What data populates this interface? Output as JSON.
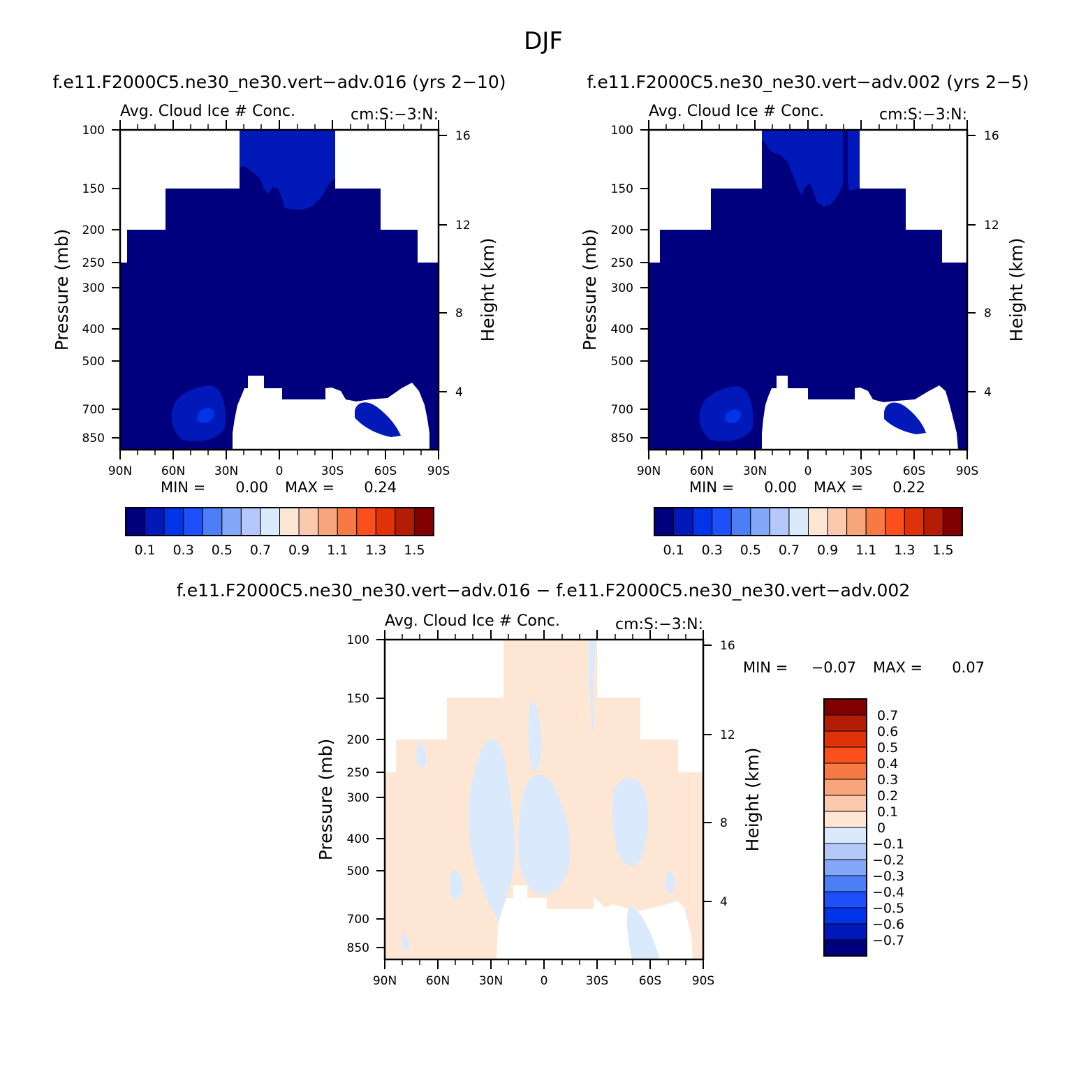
{
  "figure_title": "DJF",
  "chart_data": [
    {
      "type": "heatmap",
      "panel": "left",
      "title": "f.e11.F2000C5.ne30_ne30.vert-adv.016 (yrs 2-10)",
      "subtitle_left": "Avg. Cloud Ice # Conc.",
      "subtitle_right": "cm:S:-3:N:",
      "xlabel": "",
      "ylabel": "Pressure (mb)",
      "ylabel_right": "Height (km)",
      "x_ticks": [
        "90N",
        "60N",
        "30N",
        "0",
        "30S",
        "60S",
        "90S"
      ],
      "y_ticks": [
        100,
        150,
        200,
        250,
        300,
        400,
        500,
        700,
        850
      ],
      "y_right_ticks": [
        16,
        12,
        8,
        4
      ],
      "min_label": "MIN =",
      "min_value": "0.00",
      "max_label": "MAX =",
      "max_value": "0.24",
      "colorbar_labels": [
        "0.1",
        "0.3",
        "0.5",
        "0.7",
        "0.9",
        "1.1",
        "1.3",
        "1.5"
      ]
    },
    {
      "type": "heatmap",
      "panel": "right",
      "title": "f.e11.F2000C5.ne30_ne30.vert-adv.002 (yrs 2-5)",
      "subtitle_left": "Avg. Cloud Ice # Conc.",
      "subtitle_right": "cm:S:-3:N:",
      "xlabel": "",
      "ylabel": "Pressure (mb)",
      "ylabel_right": "Height (km)",
      "x_ticks": [
        "90N",
        "60N",
        "30N",
        "0",
        "30S",
        "60S",
        "90S"
      ],
      "y_ticks": [
        100,
        150,
        200,
        250,
        300,
        400,
        500,
        700,
        850
      ],
      "y_right_ticks": [
        16,
        12,
        8,
        4
      ],
      "min_label": "MIN =",
      "min_value": "0.00",
      "max_label": "MAX =",
      "max_value": "0.22",
      "colorbar_labels": [
        "0.1",
        "0.3",
        "0.5",
        "0.7",
        "0.9",
        "1.1",
        "1.3",
        "1.5"
      ]
    },
    {
      "type": "heatmap",
      "panel": "difference",
      "title": "f.e11.F2000C5.ne30_ne30.vert-adv.016 - f.e11.F2000C5.ne30_ne30.vert-adv.002",
      "subtitle_left": "Avg. Cloud Ice # Conc.",
      "subtitle_right": "cm:S:-3:N:",
      "xlabel": "",
      "ylabel": "Pressure (mb)",
      "ylabel_right": "Height (km)",
      "x_ticks": [
        "90N",
        "60N",
        "30N",
        "0",
        "30S",
        "60S",
        "90S"
      ],
      "y_ticks": [
        100,
        150,
        200,
        250,
        300,
        400,
        500,
        700,
        850
      ],
      "y_right_ticks": [
        16,
        12,
        8,
        4
      ],
      "min_label": "MIN =",
      "min_value": "-0.07",
      "max_label": "MAX =",
      "max_value": "0.07",
      "colorbar_labels": [
        "0.7",
        "0.6",
        "0.5",
        "0.4",
        "0.3",
        "0.2",
        "0.1",
        "0",
        "-0.1",
        "-0.2",
        "-0.3",
        "-0.4",
        "-0.5",
        "-0.6",
        "-0.7"
      ]
    }
  ],
  "colors": {
    "scale": [
      "#00007f",
      "#0019b8",
      "#0034e8",
      "#1d4ffa",
      "#4c7ff6",
      "#84a8f7",
      "#b4c8fa",
      "#dbe9fc",
      "#fde7d4",
      "#fac9ae",
      "#f8a57c",
      "#f77945",
      "#fb4f1c",
      "#df3209",
      "#b31d06",
      "#800000"
    ],
    "background": "#ffffff",
    "axis": "#000000"
  }
}
